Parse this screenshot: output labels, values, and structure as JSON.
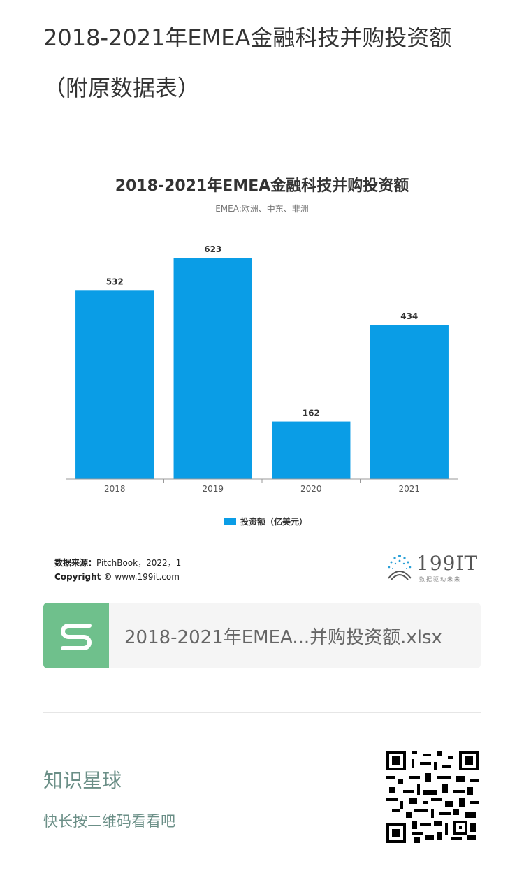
{
  "page": {
    "title": "2018-2021年EMEA金融科技并购投资额（附原数据表）"
  },
  "chart_data": {
    "type": "bar",
    "title": "2018-2021年EMEA金融科技并购投资额",
    "subtitle": "EMEA:欧洲、中东、非洲",
    "categories": [
      "2018",
      "2019",
      "2020",
      "2021"
    ],
    "series": [
      {
        "name": "投资额（亿美元）",
        "values": [
          532,
          623,
          162,
          434
        ]
      }
    ],
    "ylim": [
      0,
      680
    ],
    "grid": false,
    "legend_position": "bottom",
    "bar_color": "#0a9de6"
  },
  "source": {
    "label": "数据来源：",
    "text": "PitchBook，2022，1",
    "copyright_label": "Copyright ©",
    "copyright_site": "www.199it.com"
  },
  "logo": {
    "text": "199IT",
    "tagline": "数据驱动未来"
  },
  "attachment": {
    "file_name": "2018-2021年EMEA...并购投资额.xlsx",
    "icon": "spreadsheet-s-icon",
    "icon_color": "#6fc08c"
  },
  "footer": {
    "planet_title": "知识星球",
    "planet_hint": "快长按二维码看看吧",
    "qr_icon": "qr-code-icon"
  }
}
